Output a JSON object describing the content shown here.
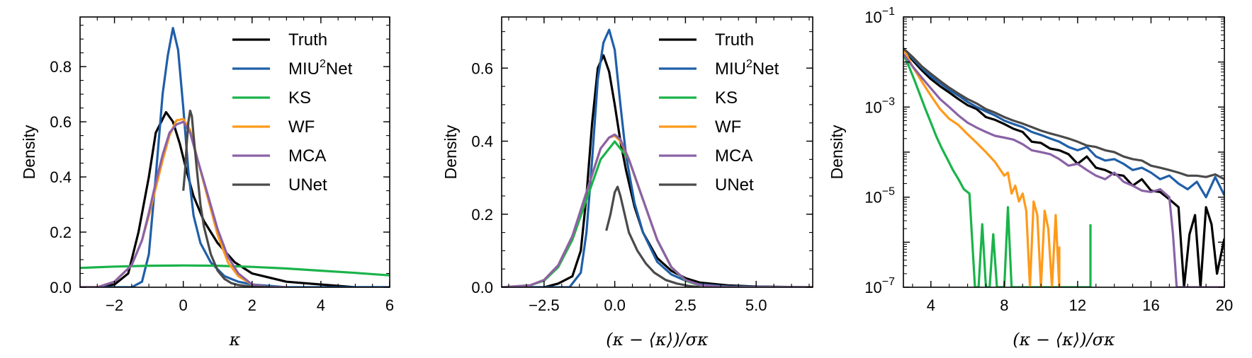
{
  "colors": {
    "Truth": "#000000",
    "MIU2Net": "#1f5fa8",
    "KS": "#1ab34a",
    "WF": "#ff9a1a",
    "MCA": "#8a62a6",
    "UNet": "#4a4a4a"
  },
  "legend_entries": [
    {
      "key": "Truth",
      "text": "Truth"
    },
    {
      "key": "MIU2Net",
      "text": "MIU",
      "sup": "2",
      "text2": "Net"
    },
    {
      "key": "KS",
      "text": "KS"
    },
    {
      "key": "WF",
      "text": "WF"
    },
    {
      "key": "MCA",
      "text": "MCA"
    },
    {
      "key": "UNet",
      "text": "UNet"
    }
  ],
  "chart_data": [
    {
      "type": "line",
      "xlabel": "κ",
      "ylabel": "Density",
      "xlim": [
        -3,
        6
      ],
      "ylim": [
        0,
        0.98
      ],
      "xticks": [
        -2,
        0,
        2,
        4,
        6
      ],
      "xtick_labels": [
        "−2",
        "0",
        "2",
        "4",
        "6"
      ],
      "yticks": [
        0.0,
        0.2,
        0.4,
        0.6,
        0.8
      ],
      "ytick_labels": [
        "0.0",
        "0.2",
        "0.4",
        "0.6",
        "0.8"
      ],
      "legend": "upper-right",
      "series": [
        {
          "key": "Truth",
          "x": [
            -3,
            -2.5,
            -2,
            -1.6,
            -1.3,
            -1.0,
            -0.8,
            -0.5,
            -0.3,
            -0.1,
            0.1,
            0.3,
            0.6,
            1.0,
            1.5,
            2.0,
            3.0,
            4.0,
            5.0,
            6.0
          ],
          "y": [
            0.0,
            0.0,
            0.01,
            0.05,
            0.2,
            0.4,
            0.56,
            0.635,
            0.6,
            0.52,
            0.42,
            0.33,
            0.24,
            0.16,
            0.09,
            0.05,
            0.02,
            0.01,
            0.0,
            0.0
          ]
        },
        {
          "key": "MIU2Net",
          "x": [
            -3,
            -1.5,
            -1.2,
            -1.0,
            -0.8,
            -0.6,
            -0.45,
            -0.3,
            -0.15,
            0.0,
            0.15,
            0.3,
            0.5,
            0.8,
            1.2,
            1.6,
            2.0,
            3.0,
            6.0
          ],
          "y": [
            0.0,
            0.0,
            0.02,
            0.12,
            0.4,
            0.7,
            0.84,
            0.94,
            0.86,
            0.65,
            0.42,
            0.26,
            0.16,
            0.09,
            0.04,
            0.02,
            0.01,
            0.0,
            0.0
          ]
        },
        {
          "key": "KS",
          "x": [
            -3,
            -2,
            -1,
            0,
            1,
            2,
            3,
            4,
            5,
            6
          ],
          "y": [
            0.07,
            0.075,
            0.078,
            0.079,
            0.078,
            0.074,
            0.068,
            0.06,
            0.052,
            0.043
          ]
        },
        {
          "key": "WF",
          "x": [
            -3,
            -2.5,
            -2,
            -1.5,
            -1.2,
            -1.0,
            -0.8,
            -0.6,
            -0.4,
            -0.2,
            0.0,
            0.2,
            0.4,
            0.7,
            1.0,
            1.3,
            1.6,
            2.0,
            2.5,
            3.0
          ],
          "y": [
            0.0,
            0.0,
            0.02,
            0.08,
            0.17,
            0.26,
            0.36,
            0.46,
            0.55,
            0.605,
            0.61,
            0.57,
            0.47,
            0.33,
            0.19,
            0.09,
            0.04,
            0.01,
            0.0,
            0.0
          ]
        },
        {
          "key": "MCA",
          "x": [
            -3,
            -2.5,
            -2,
            -1.5,
            -1.2,
            -1.0,
            -0.8,
            -0.6,
            -0.4,
            -0.2,
            0.0,
            0.2,
            0.4,
            0.7,
            1.0,
            1.3,
            1.6,
            2.0,
            2.5,
            3.0
          ],
          "y": [
            0.0,
            0.0,
            0.02,
            0.08,
            0.17,
            0.27,
            0.38,
            0.48,
            0.56,
            0.59,
            0.6,
            0.56,
            0.47,
            0.34,
            0.21,
            0.11,
            0.05,
            0.01,
            0.0,
            0.0
          ]
        },
        {
          "key": "UNet",
          "x": [
            0.0,
            0.05,
            0.1,
            0.15,
            0.2,
            0.25,
            0.3,
            0.4,
            0.5,
            0.6,
            0.8,
            1.0,
            1.2,
            1.4,
            1.6,
            2.0,
            2.5
          ],
          "y": [
            0.35,
            0.42,
            0.52,
            0.6,
            0.64,
            0.62,
            0.55,
            0.42,
            0.3,
            0.22,
            0.12,
            0.06,
            0.03,
            0.015,
            0.008,
            0.002,
            0.0
          ]
        }
      ]
    },
    {
      "type": "line",
      "xlabel": "(κ − ⟨κ⟩)/σκ",
      "ylabel": "Density",
      "xlim": [
        -4,
        7
      ],
      "ylim": [
        0,
        0.74
      ],
      "xticks": [
        -2.5,
        0.0,
        2.5,
        5.0
      ],
      "xtick_labels": [
        "−2.5",
        "0.0",
        "2.5",
        "5.0"
      ],
      "yticks": [
        0.0,
        0.2,
        0.4,
        0.6
      ],
      "ytick_labels": [
        "0.0",
        "0.2",
        "0.4",
        "0.6"
      ],
      "legend": "upper-right",
      "series": [
        {
          "key": "Truth",
          "x": [
            -4,
            -2.5,
            -2.0,
            -1.5,
            -1.2,
            -1.0,
            -0.8,
            -0.6,
            -0.4,
            -0.2,
            0.0,
            0.2,
            0.4,
            0.7,
            1.0,
            1.5,
            2.0,
            2.5,
            3.0,
            4.0,
            5.0,
            7.0
          ],
          "y": [
            0.0,
            0.0,
            0.01,
            0.03,
            0.1,
            0.25,
            0.45,
            0.6,
            0.635,
            0.59,
            0.5,
            0.4,
            0.32,
            0.22,
            0.15,
            0.08,
            0.045,
            0.025,
            0.013,
            0.005,
            0.002,
            0.0
          ]
        },
        {
          "key": "MIU2Net",
          "x": [
            -4,
            -1.6,
            -1.2,
            -1.0,
            -0.8,
            -0.6,
            -0.4,
            -0.2,
            0.0,
            0.2,
            0.4,
            0.7,
            1.0,
            1.5,
            2.0,
            2.5,
            3.0,
            4.0,
            7.0
          ],
          "y": [
            0.0,
            0.0,
            0.04,
            0.15,
            0.35,
            0.57,
            0.67,
            0.705,
            0.65,
            0.5,
            0.36,
            0.23,
            0.15,
            0.07,
            0.035,
            0.018,
            0.008,
            0.002,
            0.0
          ]
        },
        {
          "key": "KS",
          "x": [
            -4,
            -3,
            -2.5,
            -2,
            -1.5,
            -1,
            -0.5,
            0,
            0.5,
            1,
            1.5,
            2,
            2.5,
            3,
            4,
            5,
            7
          ],
          "y": [
            0.0,
            0.005,
            0.018,
            0.055,
            0.13,
            0.24,
            0.35,
            0.399,
            0.35,
            0.24,
            0.13,
            0.055,
            0.018,
            0.005,
            0.0,
            0.0,
            0.0
          ]
        },
        {
          "key": "WF",
          "x": [
            -4,
            -3,
            -2.5,
            -2,
            -1.5,
            -1,
            -0.5,
            -0.2,
            0.0,
            0.2,
            0.5,
            1,
            1.5,
            2,
            2.5,
            3,
            4,
            7
          ],
          "y": [
            0.0,
            0.005,
            0.02,
            0.06,
            0.14,
            0.26,
            0.38,
            0.41,
            0.415,
            0.4,
            0.35,
            0.24,
            0.13,
            0.055,
            0.02,
            0.006,
            0.0,
            0.0
          ]
        },
        {
          "key": "MCA",
          "x": [
            -4,
            -3,
            -2.5,
            -2,
            -1.5,
            -1,
            -0.5,
            -0.2,
            0.0,
            0.2,
            0.5,
            1,
            1.5,
            2,
            2.5,
            3,
            4,
            7
          ],
          "y": [
            0.0,
            0.005,
            0.02,
            0.06,
            0.14,
            0.26,
            0.38,
            0.41,
            0.418,
            0.405,
            0.35,
            0.24,
            0.13,
            0.055,
            0.02,
            0.006,
            0.0,
            0.0
          ]
        },
        {
          "key": "UNet",
          "x": [
            -0.3,
            -0.15,
            0.0,
            0.1,
            0.2,
            0.35,
            0.5,
            0.8,
            1.1,
            1.4,
            1.8,
            2.2,
            2.6,
            3.0
          ],
          "y": [
            0.155,
            0.2,
            0.26,
            0.275,
            0.25,
            0.2,
            0.15,
            0.1,
            0.065,
            0.04,
            0.02,
            0.01,
            0.004,
            0.0
          ]
        }
      ]
    },
    {
      "type": "line",
      "xlabel": "(κ − ⟨κ⟩)/σκ",
      "ylabel": "Density",
      "xscale": "linear",
      "yscale": "log",
      "xlim": [
        2.5,
        20
      ],
      "ylim": [
        1e-07,
        0.1
      ],
      "xticks": [
        4,
        8,
        12,
        16,
        20
      ],
      "xtick_labels": [
        "4",
        "8",
        "12",
        "16",
        "20"
      ],
      "yticks": [
        1e-07,
        1e-05,
        0.001,
        0.1
      ],
      "ytick_labels": [
        "10",
        "10",
        "10",
        "10"
      ],
      "ytick_exponents": [
        "−7",
        "−5",
        "−3",
        "−1"
      ],
      "series": [
        {
          "key": "Truth",
          "x": [
            2.5,
            3,
            3.5,
            4,
            4.5,
            5,
            5.5,
            6,
            6.5,
            7,
            7.5,
            8,
            8.5,
            9,
            9.5,
            10,
            10.5,
            11,
            11.5,
            12,
            12.5,
            13,
            13.5,
            14,
            14.5,
            15,
            15.5,
            16,
            16.5,
            17,
            17.5,
            17.8,
            18.1,
            18.4,
            18.7,
            19,
            19.3,
            19.6,
            20
          ],
          "y": [
            0.02,
            0.011,
            0.0066,
            0.0042,
            0.0029,
            0.0021,
            0.0015,
            0.0011,
            0.0009,
            0.0006,
            0.00052,
            0.00042,
            0.00033,
            0.00028,
            0.00017,
            0.00016,
            0.00012,
            0.00011,
            9e-05,
            5.5e-05,
            8e-05,
            4.5e-05,
            4e-05,
            3.2e-05,
            3e-05,
            1.8e-05,
            2.5e-05,
            1.4e-05,
            1.3e-05,
            9e-06,
            6e-06,
            1e-07,
            1.5e-06,
            4e-06,
            1e-07,
            6e-06,
            2.5e-06,
            2e-07,
            1.2e-06
          ]
        },
        {
          "key": "MIU2Net",
          "x": [
            2.5,
            3,
            3.5,
            4,
            4.5,
            5,
            5.5,
            6,
            6.5,
            7,
            7.5,
            8,
            8.5,
            9,
            9.5,
            10,
            10.5,
            11,
            11.5,
            12,
            12.5,
            13,
            13.5,
            14,
            14.5,
            15,
            15.5,
            16,
            16.5,
            17,
            17.5,
            18,
            18.5,
            19,
            19.5,
            20
          ],
          "y": [
            0.02,
            0.012,
            0.0074,
            0.0048,
            0.0034,
            0.0024,
            0.0018,
            0.0013,
            0.001,
            0.0008,
            0.00065,
            0.0005,
            0.00042,
            0.00036,
            0.00028,
            0.00024,
            0.0002,
            0.00017,
            0.00013,
            0.00011,
            0.00013,
            8e-05,
            6.5e-05,
            7e-05,
            5.5e-05,
            4e-05,
            4.5e-05,
            3.5e-05,
            2.5e-05,
            3e-05,
            2e-05,
            1.5e-05,
            2.2e-05,
            1e-05,
            2.8e-05,
            1.1e-05
          ]
        },
        {
          "key": "KS",
          "x": [
            2.5,
            2.8,
            3.1,
            3.4,
            3.7,
            4.0,
            4.3,
            4.6,
            4.9,
            5.2,
            5.5,
            5.8,
            6.1,
            6.4,
            6.6,
            6.8,
            7.0,
            7.2,
            7.4,
            7.6,
            7.8,
            8.0,
            8.2,
            8.4,
            8.6,
            9.0,
            10.0,
            11.0,
            12.0,
            12.7,
            12.7
          ],
          "y": [
            0.015,
            0.008,
            0.004,
            0.0019,
            0.0009,
            0.00045,
            0.00022,
            0.00012,
            7e-05,
            4e-05,
            2.5e-05,
            1.5e-05,
            1.2e-05,
            1e-07,
            1e-07,
            2.5e-06,
            1e-07,
            1e-07,
            1.5e-06,
            1e-07,
            1e-07,
            1e-07,
            6e-06,
            1e-07,
            1e-07,
            1e-07,
            1e-07,
            1e-07,
            1e-07,
            1e-07,
            2.5e-06
          ]
        },
        {
          "key": "WF",
          "x": [
            2.5,
            3,
            3.5,
            4,
            4.5,
            5,
            5.5,
            6,
            6.5,
            7,
            7.5,
            8,
            8.2,
            8.4,
            8.6,
            8.8,
            9.0,
            9.2,
            9.4,
            9.6,
            9.8,
            10.0,
            10.2,
            10.4,
            10.6,
            10.8,
            11.0,
            11.0
          ],
          "y": [
            0.02,
            0.008,
            0.0037,
            0.0018,
            0.0009,
            0.00055,
            0.0004,
            0.00025,
            0.00016,
            0.0001,
            6e-05,
            3e-05,
            3.5e-05,
            1.2e-05,
            1.8e-05,
            8e-06,
            1.2e-05,
            5e-06,
            1e-07,
            8e-06,
            4e-06,
            1e-07,
            5e-06,
            2e-06,
            1e-07,
            4e-06,
            1e-07,
            8e-07
          ]
        },
        {
          "key": "MCA",
          "x": [
            2.5,
            3,
            3.5,
            4,
            4.5,
            5,
            5.5,
            6,
            6.5,
            7,
            7.5,
            8,
            8.5,
            9,
            9.5,
            10,
            10.5,
            11,
            11.5,
            12,
            12.5,
            13,
            13.5,
            14,
            14.5,
            15,
            15.5,
            16,
            16.5,
            17,
            17.2,
            17.4,
            17.5,
            17.7,
            18,
            18.3,
            18.6,
            18.9,
            19.2,
            19.5,
            19.8,
            20
          ],
          "y": [
            0.015,
            0.008,
            0.0045,
            0.0026,
            0.0015,
            0.001,
            0.00065,
            0.00045,
            0.00035,
            0.00028,
            0.00023,
            0.00021,
            0.00019,
            0.00015,
            0.00011,
            0.0001,
            9e-05,
            7e-05,
            5e-05,
            5.5e-05,
            4e-05,
            3e-05,
            2.5e-05,
            3.5e-05,
            2.2e-05,
            1.8e-05,
            1.4e-05,
            1.3e-05,
            1.5e-05,
            1e-05,
            1.5e-06,
            1e-07,
            1e-07,
            1e-07,
            1e-07,
            1e-07,
            1e-07,
            1e-07,
            1e-07,
            1e-07,
            1e-07,
            1e-07
          ]
        },
        {
          "key": "UNet",
          "x": [
            2.5,
            3,
            3.5,
            4,
            4.5,
            5,
            5.5,
            6,
            6.5,
            7,
            7.5,
            8,
            8.5,
            9,
            9.5,
            10,
            10.5,
            11,
            11.5,
            12,
            12.5,
            13,
            13.5,
            14,
            14.5,
            15,
            15.5,
            16,
            16.5,
            17,
            17.5,
            18,
            18.5,
            19,
            19.5,
            20
          ],
          "y": [
            0.02,
            0.013,
            0.008,
            0.0055,
            0.0038,
            0.0027,
            0.002,
            0.0015,
            0.0012,
            0.0009,
            0.00075,
            0.0006,
            0.0005,
            0.00043,
            0.00036,
            0.0003,
            0.00026,
            0.00023,
            0.0002,
            0.00017,
            0.00014,
            0.00013,
            0.00011,
            0.0001,
            8e-05,
            7e-05,
            6.5e-05,
            5e-05,
            4.5e-05,
            4e-05,
            3.5e-05,
            3e-05,
            3e-05,
            2.8e-05,
            3.2e-05,
            2.5e-05
          ]
        }
      ]
    }
  ]
}
